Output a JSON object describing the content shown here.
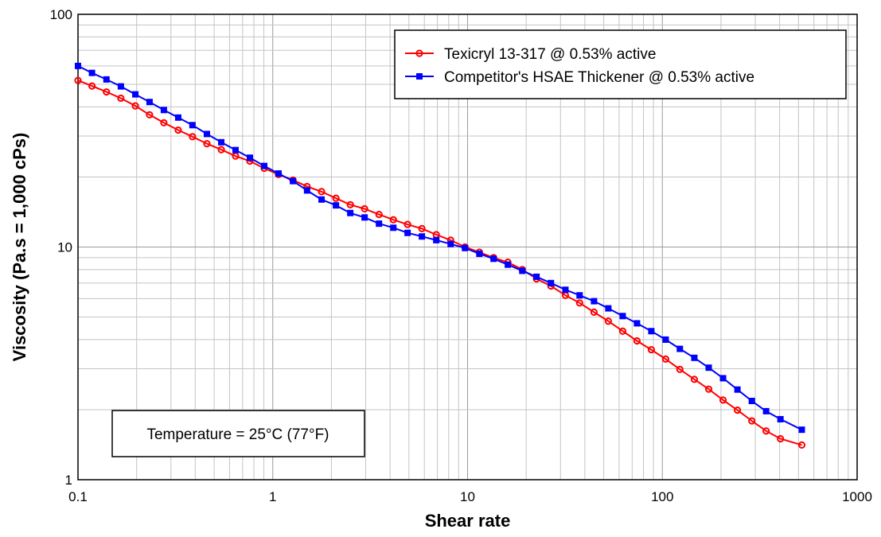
{
  "chart_data": {
    "type": "line",
    "xlabel": "Shear rate",
    "ylabel": "Viscosity (Pa.s = 1,000 cPs)",
    "xscale": "log",
    "yscale": "log",
    "xlim": [
      0.1,
      1000
    ],
    "ylim": [
      1,
      100
    ],
    "x_tick_labels": [
      "0.1",
      "1",
      "10",
      "100",
      "1000"
    ],
    "y_tick_labels": [
      "1",
      "10",
      "100"
    ],
    "grid": true,
    "legend_position": "top-right",
    "annotation": "Temperature = 25°C (77°F)",
    "series": [
      {
        "name": "Texicryl 13-317 @ 0.53% active",
        "color": "#ff0000",
        "marker": "circle",
        "x": [
          0.1,
          0.118,
          0.14,
          0.166,
          0.197,
          0.233,
          0.276,
          0.327,
          0.387,
          0.459,
          0.544,
          0.644,
          0.763,
          0.904,
          1.07,
          1.27,
          1.5,
          1.78,
          2.11,
          2.5,
          2.96,
          3.51,
          4.16,
          4.92,
          5.83,
          6.91,
          8.19,
          9.7,
          11.5,
          13.6,
          16.1,
          19.1,
          22.6,
          26.8,
          31.8,
          37.6,
          44.6,
          52.8,
          62.6,
          74.1,
          87.8,
          104,
          123,
          146,
          173,
          205,
          243,
          288,
          341,
          404,
          520
        ],
        "y": [
          52,
          49.2,
          46.4,
          43.6,
          40.4,
          37,
          34.2,
          31.8,
          29.8,
          27.8,
          26.2,
          24.6,
          23.4,
          21.8,
          20.5,
          19.4,
          18.2,
          17.3,
          16.2,
          15.2,
          14.6,
          13.8,
          13.1,
          12.5,
          12,
          11.3,
          10.7,
          10,
          9.5,
          9,
          8.6,
          8,
          7.3,
          6.8,
          6.2,
          5.75,
          5.25,
          4.8,
          4.35,
          3.95,
          3.62,
          3.3,
          2.98,
          2.7,
          2.45,
          2.2,
          1.99,
          1.79,
          1.62,
          1.5,
          1.41
        ]
      },
      {
        "name": "Competitor's HSAE Thickener @ 0.53% active",
        "color": "#0000ff",
        "marker": "square",
        "x": [
          0.1,
          0.118,
          0.14,
          0.166,
          0.197,
          0.233,
          0.276,
          0.327,
          0.387,
          0.459,
          0.544,
          0.644,
          0.763,
          0.904,
          1.07,
          1.27,
          1.5,
          1.78,
          2.11,
          2.5,
          2.96,
          3.51,
          4.16,
          4.92,
          5.83,
          6.91,
          8.19,
          9.7,
          11.5,
          13.6,
          16.1,
          19.1,
          22.6,
          26.8,
          31.8,
          37.6,
          44.6,
          52.8,
          62.6,
          74.1,
          87.8,
          104,
          123,
          146,
          173,
          205,
          243,
          288,
          341,
          404,
          520
        ],
        "y": [
          60,
          56,
          52.5,
          49,
          45.3,
          42,
          38.8,
          36,
          33.4,
          30.6,
          28.2,
          26.1,
          24.2,
          22.3,
          20.7,
          19.2,
          17.5,
          16,
          15.1,
          14,
          13.4,
          12.6,
          12.1,
          11.5,
          11.1,
          10.7,
          10.3,
          9.9,
          9.35,
          8.9,
          8.4,
          7.9,
          7.45,
          7,
          6.55,
          6.2,
          5.85,
          5.45,
          5.05,
          4.7,
          4.35,
          4,
          3.65,
          3.34,
          3.03,
          2.73,
          2.44,
          2.18,
          1.97,
          1.82,
          1.64
        ]
      }
    ]
  }
}
